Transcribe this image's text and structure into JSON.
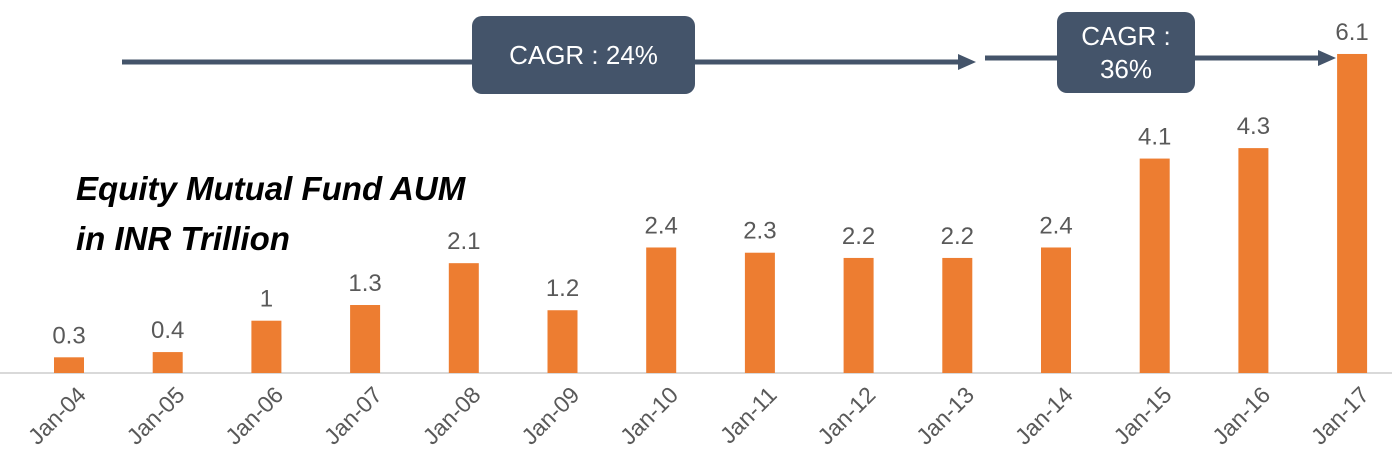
{
  "chart_data": {
    "type": "bar",
    "title": [
      "Equity Mutual Fund AUM",
      "in INR Trillion"
    ],
    "categories": [
      "Jan-04",
      "Jan-05",
      "Jan-06",
      "Jan-07",
      "Jan-08",
      "Jan-09",
      "Jan-10",
      "Jan-11",
      "Jan-12",
      "Jan-13",
      "Jan-14",
      "Jan-15",
      "Jan-16",
      "Jan-17"
    ],
    "values": [
      0.3,
      0.4,
      1,
      1.3,
      2.1,
      1.2,
      2.4,
      2.3,
      2.2,
      2.2,
      2.4,
      4.1,
      4.3,
      6.1
    ],
    "color": "#ed7d31",
    "annotations": [
      "CAGR : 24%",
      "CAGR : 36%"
    ]
  }
}
